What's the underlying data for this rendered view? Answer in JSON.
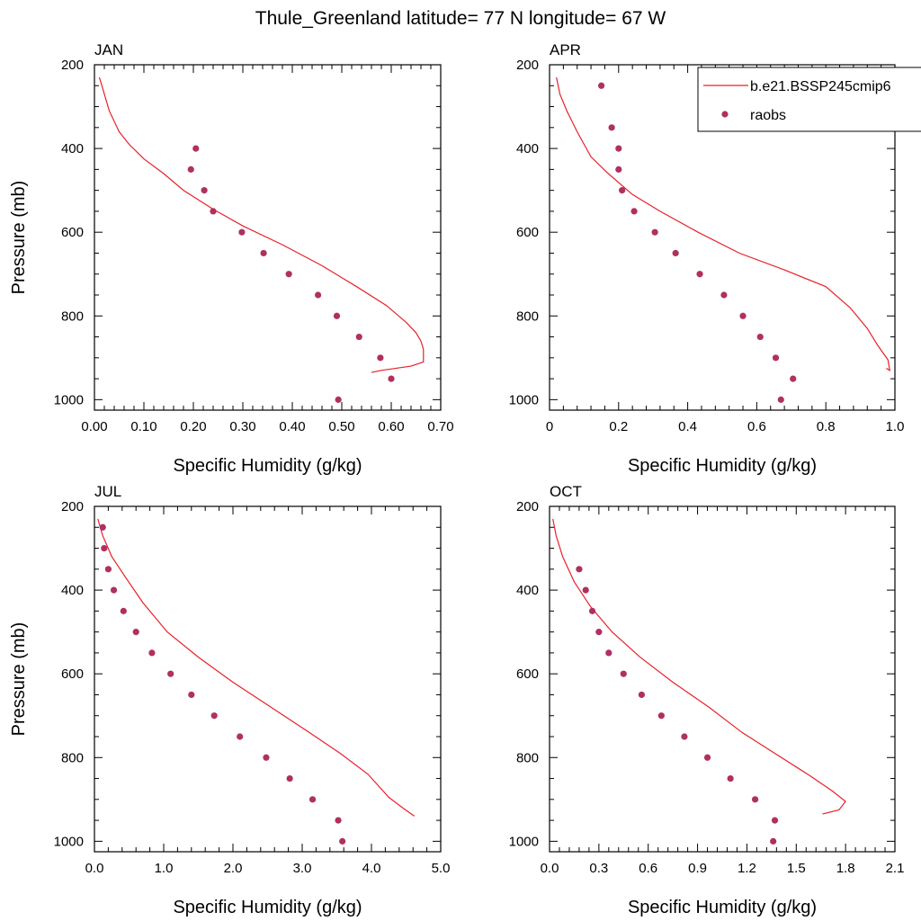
{
  "figure_title": "Thule_Greenland  latitude= 77 N longitude= 67 W",
  "colors": {
    "model_line": "#e8202a",
    "obs_marker": "#b03060",
    "axis": "#000000"
  },
  "legend": {
    "entries": [
      {
        "label": "b.e21.BSSP245cmip6",
        "style": "line"
      },
      {
        "label": "raobs",
        "style": "marker"
      }
    ]
  },
  "chart_data": [
    {
      "type": "scatter",
      "panel": "JAN",
      "title": "JAN",
      "xlabel": "Specific Humidity (g/kg)",
      "ylabel": "Pressure (mb)",
      "xlim": [
        0,
        0.7
      ],
      "ylim": [
        200,
        1025
      ],
      "y_inverted": true,
      "xticks": [
        0,
        0.1,
        0.2,
        0.3,
        0.4,
        0.5,
        0.6,
        0.7
      ],
      "xtick_labels": [
        "0.00",
        "0.10",
        "0.20",
        "0.30",
        "0.40",
        "0.50",
        "0.60",
        "0.70"
      ],
      "yticks": [
        200,
        400,
        600,
        800,
        1000
      ],
      "ytick_labels": [
        "200",
        "400",
        "600",
        "800",
        "1000"
      ],
      "series": [
        {
          "name": "b.e21.BSSP245cmip6",
          "kind": "line",
          "x": [
            0.01,
            0.02,
            0.03,
            0.05,
            0.07,
            0.1,
            0.14,
            0.18,
            0.24,
            0.3,
            0.38,
            0.46,
            0.53,
            0.59,
            0.63,
            0.65,
            0.66,
            0.665,
            0.665,
            0.64,
            0.58,
            0.56
          ],
          "y": [
            230,
            270,
            310,
            360,
            390,
            425,
            460,
            500,
            545,
            585,
            630,
            680,
            730,
            775,
            815,
            840,
            860,
            880,
            910,
            920,
            930,
            935
          ]
        },
        {
          "name": "raobs",
          "kind": "marker",
          "x": [
            0.205,
            0.195,
            0.222,
            0.24,
            0.298,
            0.342,
            0.393,
            0.452,
            0.49,
            0.535,
            0.578,
            0.6,
            0.493
          ],
          "y": [
            400,
            450,
            500,
            550,
            600,
            650,
            700,
            750,
            800,
            850,
            900,
            950,
            1000
          ]
        }
      ]
    },
    {
      "type": "scatter",
      "panel": "APR",
      "title": "APR",
      "xlabel": "Specific Humidity (g/kg)",
      "ylabel": "",
      "xlim": [
        0,
        1.0
      ],
      "ylim": [
        200,
        1025
      ],
      "y_inverted": true,
      "xticks": [
        0,
        0.2,
        0.4,
        0.6,
        0.8,
        1.0
      ],
      "xtick_labels": [
        "0",
        "0.2",
        "0.4",
        "0.6",
        "0.8",
        "1.0"
      ],
      "yticks": [
        200,
        400,
        600,
        800,
        1000
      ],
      "ytick_labels": [
        "200",
        "400",
        "600",
        "800",
        "1000"
      ],
      "series": [
        {
          "name": "b.e21.BSSP245cmip6",
          "kind": "line",
          "x": [
            0.02,
            0.03,
            0.05,
            0.08,
            0.12,
            0.17,
            0.24,
            0.32,
            0.43,
            0.55,
            0.68,
            0.8,
            0.87,
            0.92,
            0.95,
            0.98,
            0.985,
            0.975
          ],
          "y": [
            230,
            270,
            310,
            360,
            420,
            460,
            510,
            550,
            600,
            650,
            690,
            730,
            780,
            830,
            870,
            905,
            930,
            925
          ]
        },
        {
          "name": "raobs",
          "kind": "marker",
          "x": [
            0.15,
            0.18,
            0.2,
            0.2,
            0.21,
            0.245,
            0.305,
            0.365,
            0.435,
            0.505,
            0.56,
            0.61,
            0.655,
            0.705,
            0.67
          ],
          "y": [
            250,
            350,
            400,
            450,
            500,
            550,
            600,
            650,
            700,
            750,
            800,
            850,
            900,
            950,
            1000
          ]
        }
      ]
    },
    {
      "type": "scatter",
      "panel": "JUL",
      "title": "JUL",
      "xlabel": "Specific Humidity (g/kg)",
      "ylabel": "Pressure (mb)",
      "xlim": [
        0,
        5.0
      ],
      "ylim": [
        200,
        1025
      ],
      "y_inverted": true,
      "xticks": [
        0,
        1,
        2,
        3,
        4,
        5
      ],
      "xtick_labels": [
        "0.0",
        "1.0",
        "2.0",
        "3.0",
        "4.0",
        "5.0"
      ],
      "yticks": [
        200,
        400,
        600,
        800,
        1000
      ],
      "ytick_labels": [
        "200",
        "400",
        "600",
        "800",
        "1000"
      ],
      "series": [
        {
          "name": "b.e21.BSSP245cmip6",
          "kind": "line",
          "x": [
            0.05,
            0.12,
            0.25,
            0.45,
            0.7,
            1.05,
            1.5,
            2.0,
            2.55,
            3.1,
            3.55,
            3.95,
            4.25,
            4.45,
            4.62
          ],
          "y": [
            230,
            270,
            320,
            370,
            430,
            500,
            560,
            620,
            680,
            740,
            790,
            840,
            895,
            920,
            940
          ]
        },
        {
          "name": "raobs",
          "kind": "marker",
          "x": [
            0.12,
            0.14,
            0.2,
            0.28,
            0.42,
            0.6,
            0.83,
            1.1,
            1.4,
            1.73,
            2.1,
            2.48,
            2.82,
            3.15,
            3.52,
            3.58
          ],
          "y": [
            250,
            300,
            350,
            400,
            450,
            500,
            550,
            600,
            650,
            700,
            750,
            800,
            850,
            900,
            950,
            1000
          ]
        }
      ]
    },
    {
      "type": "scatter",
      "panel": "OCT",
      "title": "OCT",
      "xlabel": "Specific Humidity (g/kg)",
      "ylabel": "",
      "xlim": [
        0,
        2.1
      ],
      "ylim": [
        200,
        1025
      ],
      "y_inverted": true,
      "xticks": [
        0,
        0.3,
        0.6,
        0.9,
        1.2,
        1.5,
        1.8,
        2.1
      ],
      "xtick_labels": [
        "0.0",
        "0.3",
        "0.6",
        "0.9",
        "1.2",
        "1.5",
        "1.8",
        "2.1"
      ],
      "yticks": [
        200,
        400,
        600,
        800,
        1000
      ],
      "ytick_labels": [
        "200",
        "400",
        "600",
        "800",
        "1000"
      ],
      "series": [
        {
          "name": "b.e21.BSSP245cmip6",
          "kind": "line",
          "x": [
            0.02,
            0.04,
            0.08,
            0.15,
            0.25,
            0.38,
            0.55,
            0.75,
            0.97,
            1.17,
            1.37,
            1.57,
            1.72,
            1.8,
            1.76,
            1.66
          ],
          "y": [
            230,
            270,
            320,
            380,
            440,
            500,
            560,
            620,
            680,
            740,
            790,
            840,
            880,
            905,
            925,
            935
          ]
        },
        {
          "name": "raobs",
          "kind": "marker",
          "x": [
            0.18,
            0.22,
            0.26,
            0.3,
            0.36,
            0.45,
            0.56,
            0.68,
            0.82,
            0.96,
            1.1,
            1.25,
            1.37,
            1.36
          ],
          "y": [
            350,
            400,
            450,
            500,
            550,
            600,
            650,
            700,
            750,
            800,
            850,
            900,
            950,
            1000
          ]
        }
      ]
    }
  ]
}
